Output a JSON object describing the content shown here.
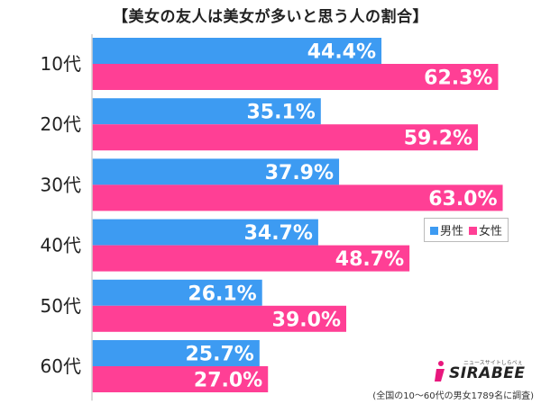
{
  "chart_data": {
    "type": "bar",
    "orientation": "horizontal",
    "title": "【美女の友人は美女が多いと思う人の割合】",
    "categories": [
      "10代",
      "20代",
      "30代",
      "40代",
      "50代",
      "60代"
    ],
    "series": [
      {
        "name": "男性",
        "color": "#3d9bf2",
        "values": [
          44.4,
          35.1,
          37.9,
          34.7,
          26.1,
          25.7
        ]
      },
      {
        "name": "女性",
        "color": "#ff3f95",
        "values": [
          62.3,
          59.2,
          63.0,
          48.7,
          39.0,
          27.0
        ]
      }
    ],
    "value_suffix": "%",
    "xlim": [
      0,
      65
    ],
    "grid": false,
    "legend_position": "right"
  },
  "footnote": "(全国の10～60代の男女1789名に調査)",
  "logo": {
    "brand": "SIRABEE",
    "tagline": "ニュースサイトしらべぇ",
    "accent_color": "#e8177d"
  }
}
